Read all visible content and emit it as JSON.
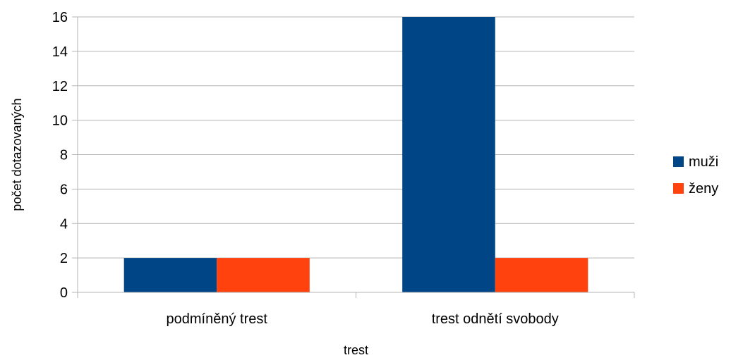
{
  "chart_data": {
    "type": "bar",
    "title": "",
    "xlabel": "trest",
    "ylabel": "počet dotazovaných",
    "categories": [
      "podmíněný trest",
      "trest odnětí svobody"
    ],
    "series": [
      {
        "name": "muži",
        "values": [
          2,
          16
        ],
        "color": "#004586"
      },
      {
        "name": "ženy",
        "values": [
          2,
          2
        ],
        "color": "#ff420e"
      }
    ],
    "ylim": [
      0,
      16
    ],
    "yticks": [
      0,
      2,
      4,
      6,
      8,
      10,
      12,
      14,
      16
    ],
    "grid": true,
    "legend_position": "right"
  }
}
